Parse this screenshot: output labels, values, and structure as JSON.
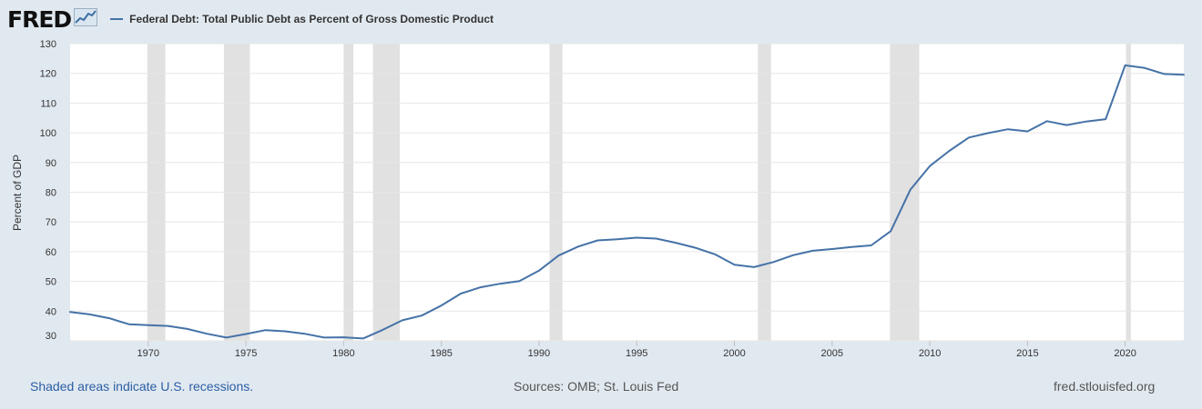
{
  "header": {
    "logo_text": "FRED",
    "series_title": "Federal Debt: Total Public Debt as Percent of Gross Domestic Product"
  },
  "footer": {
    "recession_note": "Shaded areas indicate U.S. recessions.",
    "sources": "Sources: OMB; St. Louis Fed",
    "site": "fred.stlouisfed.org"
  },
  "colors": {
    "page_background": "#e1e9f0",
    "plot_background": "#ffffff",
    "series_line": "#4572a7",
    "recession_shade": "#e1e1e1",
    "link_blue": "#2b5ea5"
  },
  "icons": [
    "fred-logo-graph-icon"
  ],
  "chart_data": {
    "type": "line",
    "title": "Federal Debt: Total Public Debt as Percent of Gross Domestic Product",
    "xlabel": "",
    "ylabel": "Percent of GDP",
    "xlim": [
      1966,
      2023
    ],
    "ylim": [
      30,
      130
    ],
    "x_ticks": [
      1970,
      1975,
      1980,
      1985,
      1990,
      1995,
      2000,
      2005,
      2010,
      2015,
      2020
    ],
    "y_ticks": [
      30,
      40,
      50,
      60,
      70,
      80,
      90,
      100,
      110,
      120,
      130
    ],
    "grid": "horizontal",
    "legend_position": "top-left",
    "series": [
      {
        "name": "Federal Debt: Total Public Debt as Percent of Gross Domestic Product",
        "x": [
          1966,
          1967,
          1968,
          1969,
          1970,
          1971,
          1972,
          1973,
          1974,
          1975,
          1976,
          1977,
          1978,
          1979,
          1980,
          1981,
          1982,
          1983,
          1984,
          1985,
          1986,
          1987,
          1988,
          1989,
          1990,
          1991,
          1992,
          1993,
          1994,
          1995,
          1996,
          1997,
          1998,
          1999,
          2000,
          2001,
          2002,
          2003,
          2004,
          2005,
          2006,
          2007,
          2008,
          2009,
          2010,
          2011,
          2012,
          2013,
          2014,
          2015,
          2016,
          2017,
          2018,
          2019,
          2020,
          2021,
          2022,
          2023
        ],
        "y": [
          39.7,
          38.9,
          37.6,
          35.6,
          35.3,
          35.0,
          34.0,
          32.4,
          31.1,
          32.3,
          33.6,
          33.2,
          32.4,
          31.1,
          31.2,
          30.8,
          33.7,
          36.9,
          38.5,
          41.9,
          45.9,
          48.0,
          49.2,
          50.1,
          53.6,
          58.7,
          61.7,
          63.8,
          64.2,
          64.7,
          64.4,
          63.0,
          61.3,
          59.1,
          55.6,
          54.8,
          56.5,
          58.8,
          60.3,
          60.9,
          61.6,
          62.1,
          66.9,
          80.8,
          88.8,
          93.9,
          98.4,
          99.9,
          101.2,
          100.5,
          103.9,
          102.6,
          103.8,
          104.6,
          122.7,
          121.8,
          119.8,
          119.5
        ]
      }
    ],
    "recessions": [
      [
        1969.95,
        1970.87
      ],
      [
        1973.87,
        1975.2
      ],
      [
        1980.0,
        1980.5
      ],
      [
        1981.5,
        1982.87
      ],
      [
        1990.54,
        1991.2
      ],
      [
        2001.2,
        2001.87
      ],
      [
        2007.96,
        2009.46
      ],
      [
        2020.04,
        2020.29
      ]
    ]
  }
}
